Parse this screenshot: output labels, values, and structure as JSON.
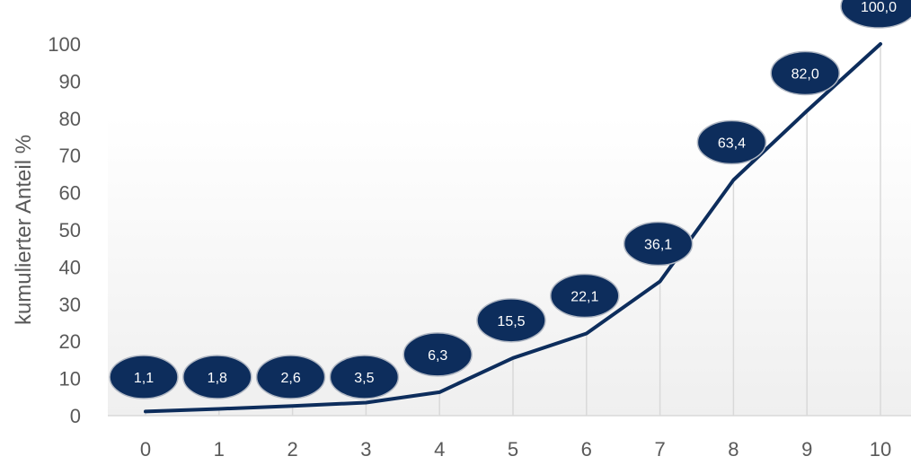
{
  "chart_data": {
    "type": "line",
    "title": "",
    "xlabel": "",
    "ylabel": "kumulierter Anteil %",
    "x": [
      0,
      1,
      2,
      3,
      4,
      5,
      6,
      7,
      8,
      9,
      10
    ],
    "x_tick_labels": [
      "0",
      "1",
      "2",
      "3",
      "4",
      "5",
      "6",
      "7",
      "8",
      "9",
      "10"
    ],
    "series": [
      {
        "values": [
          1.1,
          1.8,
          2.6,
          3.5,
          6.3,
          15.5,
          22.1,
          36.1,
          63.4,
          82.0,
          100.0
        ],
        "data_labels": [
          "1,1",
          "1,8",
          "2,6",
          "3,5",
          "6,3",
          "15,5",
          "22,1",
          "36,1",
          "63,4",
          "82,0",
          "100,0"
        ]
      }
    ],
    "y_ticks": [
      0,
      10,
      20,
      30,
      40,
      50,
      60,
      70,
      80,
      90,
      100
    ],
    "y_tick_labels": [
      "0",
      "10",
      "20",
      "30",
      "40",
      "50",
      "60",
      "70",
      "80",
      "90",
      "100"
    ],
    "ylim": [
      0,
      100
    ],
    "xlim": [
      0,
      10
    ],
    "grid": "vertical drop lines",
    "legend": "none",
    "colors": {
      "line": "#0d2d5c",
      "label_fill": "#0d2d5c",
      "label_stroke": "#b0b7c3",
      "label_text": "#ffffff",
      "drop_line": "#d9d9d9",
      "axis_line": "#d9d9d9",
      "tick_text": "#595959",
      "plot_gradient_top": "#ffffff",
      "plot_gradient_bottom": "#efefef"
    }
  }
}
